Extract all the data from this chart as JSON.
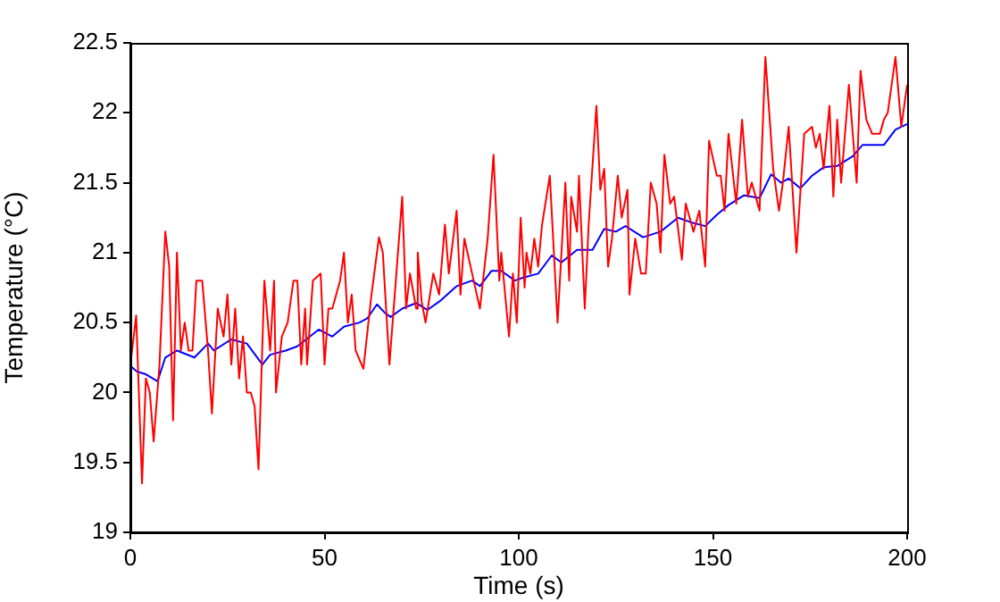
{
  "chart_data": {
    "type": "line",
    "xlabel": "Time (s)",
    "ylabel": "Temperature (°C)",
    "xlim": [
      0,
      200
    ],
    "ylim": [
      19,
      22.5
    ],
    "xticks": [
      0,
      50,
      100,
      150,
      200
    ],
    "yticks": [
      19,
      19.5,
      20,
      20.5,
      21,
      21.5,
      22,
      22.5
    ],
    "grid": false,
    "legend": false,
    "marker": "none",
    "line_style": "solid",
    "series": [
      {
        "color": "#ff0000",
        "x": [
          0,
          1.5,
          3,
          4,
          5,
          6,
          7.5,
          9,
          10,
          11,
          12,
          13,
          14,
          15,
          16,
          17,
          18.5,
          20,
          21,
          22.5,
          24,
          25,
          26,
          27,
          28,
          29,
          30,
          31,
          32,
          33,
          34.5,
          36,
          37,
          37.5,
          39,
          40.5,
          42,
          43,
          44,
          45,
          45.5,
          47,
          49,
          50,
          51,
          52,
          54,
          55,
          56,
          57,
          58,
          60,
          62,
          64,
          65,
          66.7,
          70,
          71,
          72,
          73.6,
          74,
          75,
          76,
          78,
          79.5,
          81,
          82,
          84,
          85,
          86,
          88,
          90,
          92,
          93.5,
          95,
          95.5,
          97.5,
          98.5,
          99.5,
          100.5,
          101.5,
          102,
          103,
          104,
          105,
          106,
          108,
          110,
          112,
          113,
          113.5,
          115,
          115.5,
          117,
          118,
          120,
          121,
          122,
          123,
          124,
          125.5,
          126.5,
          128,
          128.5,
          130,
          131.5,
          132.7,
          134,
          135.5,
          136.5,
          137.5,
          139,
          140,
          142,
          143,
          145,
          146.5,
          148,
          149,
          151,
          152,
          153,
          154,
          156,
          157.5,
          159,
          160,
          162,
          163.5,
          165.5,
          167,
          168,
          169.5,
          171.5,
          173.5,
          175.5,
          176.5,
          177.5,
          178.5,
          180,
          181,
          182,
          183,
          185,
          187,
          188,
          189.5,
          191,
          193,
          194,
          195,
          197,
          198.5,
          200
        ],
        "values": [
          20.2,
          20.55,
          19.35,
          20.1,
          20.0,
          19.65,
          20.2,
          21.15,
          20.9,
          19.8,
          21.0,
          20.3,
          20.5,
          20.3,
          20.3,
          20.8,
          20.8,
          20.3,
          19.85,
          20.6,
          20.4,
          20.7,
          20.2,
          20.6,
          20.1,
          20.4,
          20.0,
          20.0,
          19.9,
          19.45,
          20.8,
          20.3,
          20.8,
          20.0,
          20.4,
          20.5,
          20.8,
          20.8,
          20.2,
          20.6,
          20.2,
          20.8,
          20.85,
          20.2,
          20.6,
          20.6,
          20.8,
          21.0,
          20.5,
          20.7,
          20.3,
          20.17,
          20.68,
          21.11,
          21.0,
          20.2,
          21.4,
          20.6,
          20.85,
          20.6,
          21.0,
          20.65,
          20.5,
          20.85,
          20.7,
          21.2,
          20.85,
          21.3,
          20.7,
          21.1,
          20.85,
          20.6,
          21.1,
          21.7,
          20.8,
          21.0,
          20.4,
          20.85,
          20.5,
          21.25,
          20.75,
          21.0,
          20.85,
          21.1,
          20.9,
          21.2,
          21.55,
          20.5,
          21.5,
          20.8,
          21.4,
          21.15,
          21.55,
          20.6,
          21.2,
          22.05,
          21.45,
          21.6,
          20.9,
          21.1,
          21.55,
          21.25,
          21.45,
          20.7,
          21.1,
          20.85,
          20.85,
          21.5,
          21.35,
          21.0,
          21.7,
          21.35,
          21.4,
          20.95,
          21.35,
          21.15,
          21.3,
          20.9,
          21.8,
          21.55,
          21.55,
          21.3,
          21.85,
          21.35,
          21.95,
          21.4,
          21.5,
          21.3,
          22.4,
          21.6,
          21.3,
          21.5,
          21.9,
          21.0,
          21.85,
          21.9,
          21.75,
          21.85,
          21.6,
          22.05,
          21.4,
          21.95,
          21.5,
          22.2,
          21.5,
          22.3,
          21.95,
          21.85,
          21.85,
          21.95,
          22.0,
          22.4,
          21.9,
          22.2
        ]
      },
      {
        "color": "#0000ff",
        "x": [
          0,
          1.7,
          4,
          7,
          9,
          12,
          16.5,
          20,
          21.5,
          26,
          30,
          34,
          36,
          40,
          43,
          48.5,
          52,
          55,
          59,
          61,
          63.5,
          65.5,
          67,
          70,
          73.6,
          76.5,
          80,
          84,
          88,
          90,
          93,
          95.5,
          99,
          101,
          105,
          108.5,
          111,
          115,
          117,
          119,
          122,
          125,
          127.5,
          132,
          136.5,
          141,
          144,
          148,
          151,
          154,
          158,
          162,
          165,
          167.5,
          169.5,
          172.5,
          175.5,
          178.5,
          182,
          186,
          188.5,
          194,
          197,
          200
        ],
        "values": [
          20.19,
          20.15,
          20.13,
          20.08,
          20.25,
          20.3,
          20.25,
          20.35,
          20.3,
          20.38,
          20.35,
          20.2,
          20.27,
          20.3,
          20.33,
          20.45,
          20.4,
          20.47,
          20.5,
          20.53,
          20.63,
          20.57,
          20.54,
          20.6,
          20.64,
          20.59,
          20.66,
          20.76,
          20.8,
          20.76,
          20.87,
          20.87,
          20.8,
          20.82,
          20.85,
          20.98,
          20.93,
          21.02,
          21.02,
          21.02,
          21.17,
          21.15,
          21.19,
          21.11,
          21.15,
          21.25,
          21.22,
          21.19,
          21.27,
          21.34,
          21.41,
          21.39,
          21.56,
          21.5,
          21.53,
          21.46,
          21.55,
          21.61,
          21.62,
          21.69,
          21.77,
          21.77,
          21.88,
          21.92
        ]
      }
    ]
  }
}
